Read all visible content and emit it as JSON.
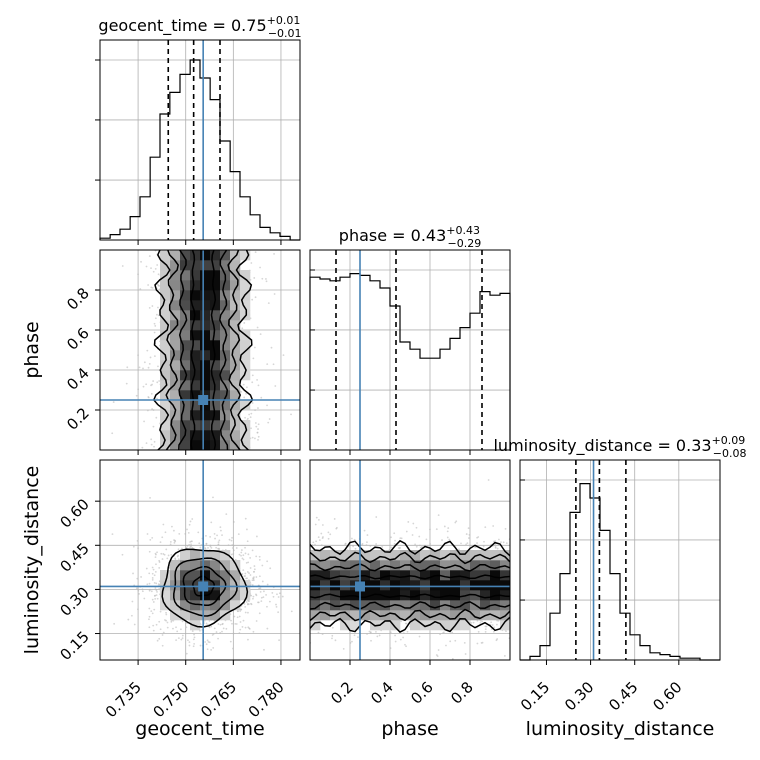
{
  "chart_data": {
    "type": "corner",
    "parameters": [
      {
        "name": "geocent_time",
        "xlabel": "geocent_time",
        "ylabel": "",
        "title_base": "geocent_time = 0.75",
        "title_plus": "+0.01",
        "title_minus": "−0.01",
        "range": [
          0.723,
          0.786
        ],
        "ticks": [
          0.735,
          0.75,
          0.765,
          0.78
        ],
        "tick_labels": [
          "0.735",
          "0.750",
          "0.765",
          "0.780"
        ],
        "quantiles": [
          0.7445,
          0.7525,
          0.7608
        ],
        "truth": 0.7555,
        "hist_bins": [
          0.723,
          0.7262,
          0.7293,
          0.7325,
          0.7356,
          0.7388,
          0.7419,
          0.745,
          0.7482,
          0.7514,
          0.7545,
          0.7577,
          0.7608,
          0.764,
          0.7671,
          0.7703,
          0.7734,
          0.7766,
          0.7797,
          0.7829,
          0.786
        ],
        "hist_heights": [
          0.01,
          0.03,
          0.06,
          0.13,
          0.24,
          0.46,
          0.7,
          0.82,
          0.92,
          1.0,
          0.9,
          0.78,
          0.55,
          0.38,
          0.24,
          0.14,
          0.07,
          0.04,
          0.02,
          0.0
        ]
      },
      {
        "name": "phase",
        "xlabel": "phase",
        "ylabel": "phase",
        "title_base": "phase = 0.43",
        "title_plus": "+0.43",
        "title_minus": "−0.29",
        "range": [
          0.0,
          1.0
        ],
        "ticks": [
          0.2,
          0.4,
          0.6,
          0.8
        ],
        "tick_labels": [
          "0.2",
          "0.4",
          "0.6",
          "0.8"
        ],
        "quantiles": [
          0.13,
          0.43,
          0.86
        ],
        "truth": 0.25,
        "hist_bins": [
          0.0,
          0.05,
          0.1,
          0.15,
          0.2,
          0.25,
          0.3,
          0.35,
          0.4,
          0.45,
          0.5,
          0.55,
          0.6,
          0.65,
          0.7,
          0.75,
          0.8,
          0.85,
          0.9,
          0.95,
          1.0
        ],
        "hist_heights": [
          0.96,
          0.95,
          0.94,
          0.96,
          0.98,
          0.97,
          0.94,
          0.9,
          0.8,
          0.6,
          0.56,
          0.51,
          0.51,
          0.56,
          0.62,
          0.68,
          0.76,
          0.88,
          0.86,
          0.87
        ]
      },
      {
        "name": "luminosity_distance",
        "xlabel": "luminosity_distance",
        "ylabel": "luminosity_distance",
        "title_base": "luminosity_distance = 0.33",
        "title_plus": "+0.09",
        "title_minus": "−0.08",
        "range": [
          0.06,
          0.74
        ],
        "ticks": [
          0.15,
          0.3,
          0.45,
          0.6
        ],
        "tick_labels": [
          "0.15",
          "0.30",
          "0.45",
          "0.60"
        ],
        "quantiles": [
          0.25,
          0.33,
          0.42
        ],
        "truth": 0.31,
        "hist_bins": [
          0.06,
          0.094,
          0.128,
          0.162,
          0.196,
          0.23,
          0.264,
          0.298,
          0.332,
          0.366,
          0.4,
          0.434,
          0.468,
          0.502,
          0.536,
          0.57,
          0.604,
          0.638,
          0.672,
          0.706,
          0.74
        ],
        "hist_heights": [
          0.0,
          0.02,
          0.08,
          0.26,
          0.48,
          0.82,
          0.98,
          0.9,
          0.72,
          0.48,
          0.26,
          0.14,
          0.08,
          0.04,
          0.03,
          0.02,
          0.01,
          0.01,
          0.0,
          0.0
        ]
      }
    ],
    "pairs": [
      {
        "x": 0,
        "y": 1,
        "center_x": 0.7555,
        "center_y": 0.25,
        "sigma_x": 0.0065,
        "sigma_y": 0.3
      },
      {
        "x": 0,
        "y": 2,
        "center_x": 0.7555,
        "center_y": 0.31,
        "sigma_x": 0.0065,
        "sigma_y": 0.065
      },
      {
        "x": 1,
        "y": 2,
        "center_x": 0.25,
        "center_y": 0.31,
        "sigma_x": 0.3,
        "sigma_y": 0.065
      }
    ],
    "colors": {
      "truth": "#4682b4",
      "hist": "#000000",
      "grid": "#b0b0b0",
      "points": "#bbbbbb"
    },
    "grid": true
  }
}
